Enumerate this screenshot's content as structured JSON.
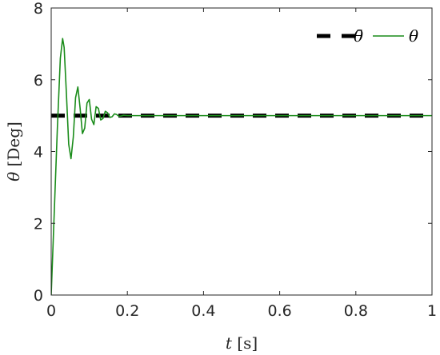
{
  "chart_data": {
    "type": "line",
    "xlabel": {
      "symbol": "t",
      "unit": "[s]"
    },
    "ylabel": {
      "symbol": "θ",
      "unit": "[Deg]"
    },
    "xlim": [
      0,
      1
    ],
    "ylim": [
      0,
      8
    ],
    "xticks": [
      0,
      0.2,
      0.4,
      0.6,
      0.8,
      1
    ],
    "xtick_labels": [
      "0",
      "0.2",
      "0.4",
      "0.6",
      "0.8",
      "1"
    ],
    "yticks": [
      0,
      2,
      4,
      6,
      8
    ],
    "ytick_labels": [
      "0",
      "2",
      "4",
      "6",
      "8"
    ],
    "grid": false,
    "legend_position": "top-right",
    "series": [
      {
        "name": "θ̄",
        "style": "dashed",
        "color": "#000000",
        "x": [
          0,
          1
        ],
        "y": [
          5,
          5
        ]
      },
      {
        "name": "θ",
        "style": "solid",
        "color": "#1a8c1a",
        "x": [
          0,
          0.008,
          0.016,
          0.024,
          0.03,
          0.034,
          0.04,
          0.046,
          0.052,
          0.058,
          0.064,
          0.07,
          0.076,
          0.082,
          0.088,
          0.094,
          0.1,
          0.106,
          0.112,
          0.118,
          0.124,
          0.13,
          0.136,
          0.142,
          0.148,
          0.154,
          0.16,
          0.166,
          0.172,
          0.178,
          0.184,
          0.19,
          0.2,
          0.22,
          0.26,
          0.4,
          0.6,
          0.8,
          1.0
        ],
        "y": [
          0,
          2.3,
          4.6,
          6.6,
          7.15,
          6.9,
          5.6,
          4.2,
          3.8,
          4.4,
          5.5,
          5.8,
          5.2,
          4.5,
          4.65,
          5.35,
          5.45,
          4.9,
          4.75,
          5.25,
          5.2,
          4.88,
          4.92,
          5.12,
          5.08,
          4.95,
          4.97,
          5.05,
          5.03,
          4.98,
          4.99,
          5.01,
          5.0,
          5.0,
          5.0,
          5.0,
          5.0,
          5.0,
          5.0
        ]
      }
    ]
  }
}
